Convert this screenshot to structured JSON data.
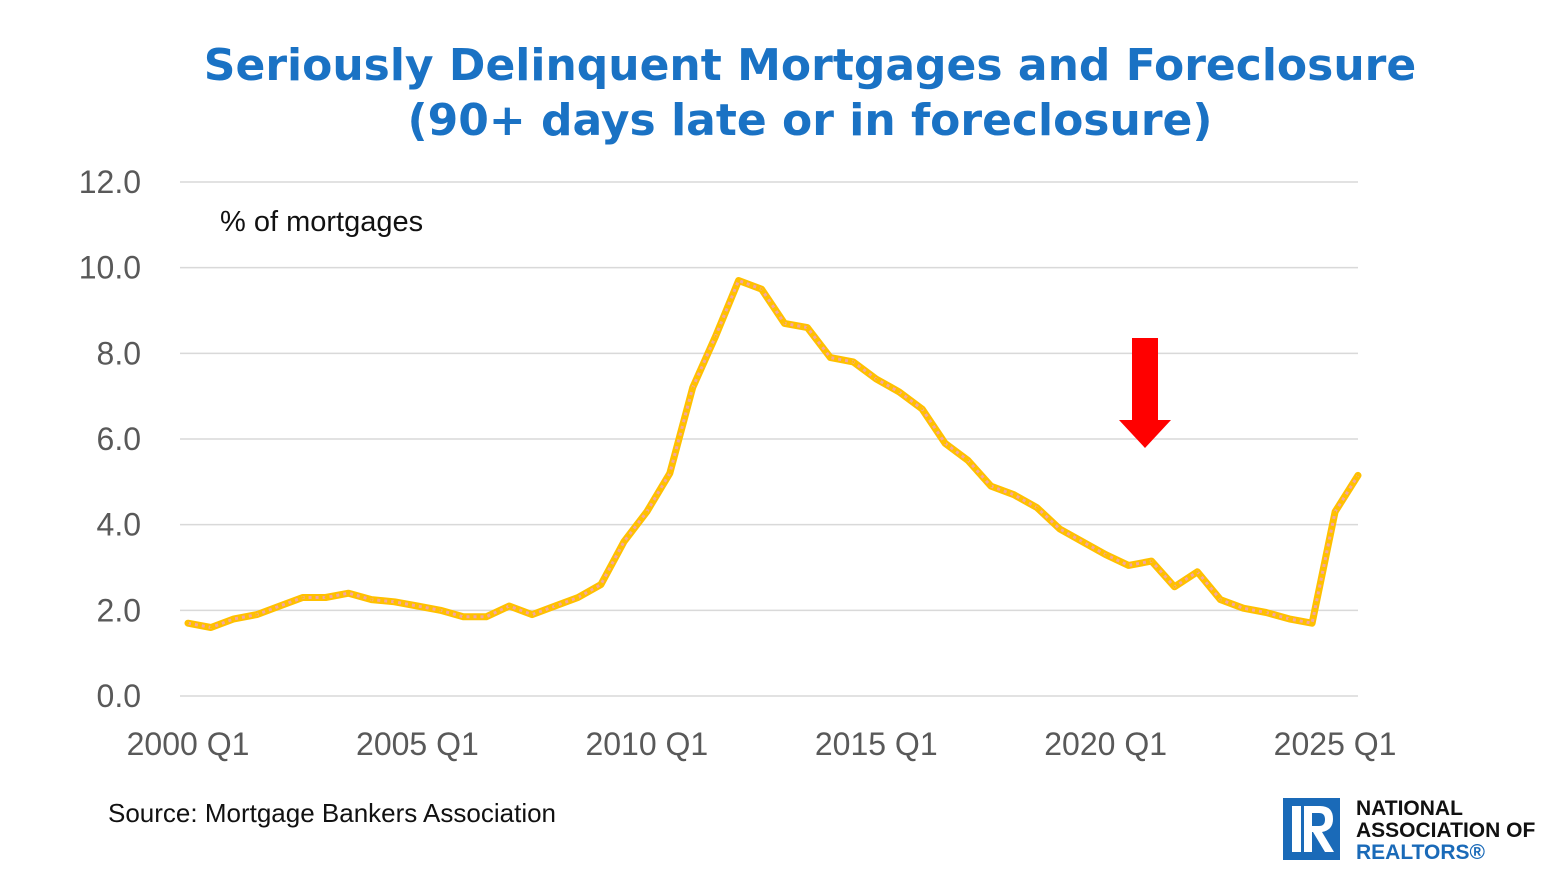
{
  "colors": {
    "title": "#1a72c4",
    "series_total": "#ffc000",
    "series_total_dash": "#f4a3a3",
    "series_foreclosure": "#e8101c",
    "series_foreclosure_dash": "#8a1528",
    "arrow": "#ff0000",
    "grid": "#d9d9d9",
    "logo_blue": "#1a6ab8"
  },
  "logo": {
    "icon": "realtor-r-logo-icon",
    "line1": "NATIONAL",
    "line2": "ASSOCIATION OF",
    "line3": "REALTORS®"
  },
  "chart_data": {
    "type": "line",
    "title_line1": "Seriously Delinquent Mortgages and Foreclosure",
    "title_line2": "(90+ days late or in foreclosure)",
    "ylabel": "% of mortgages",
    "source": "Source: Mortgage Bankers Association",
    "ylim": [
      0,
      12
    ],
    "yticks": [
      "0.0",
      "2.0",
      "4.0",
      "6.0",
      "8.0",
      "10.0",
      "12.0"
    ],
    "x_tick_labels": [
      "2000 Q1",
      "2005 Q1",
      "2010 Q1",
      "2015 Q1",
      "2020 Q1",
      "2025 Q1"
    ],
    "x_range": [
      "2000 Q1",
      "2025 Q3"
    ],
    "grid": "horizontal",
    "annotation": {
      "type": "red-down-arrow",
      "points_to": "2020 Q3"
    },
    "series": [
      {
        "values": [
          {
            "x": "2000 Q1",
            "y": 1.7
          },
          {
            "x": "2000 Q3",
            "y": 1.6
          },
          {
            "x": "2001 Q1",
            "y": 1.8
          },
          {
            "x": "2001 Q3",
            "y": 1.9
          },
          {
            "x": "2002 Q1",
            "y": 2.1
          },
          {
            "x": "2002 Q3",
            "y": 2.3
          },
          {
            "x": "2003 Q1",
            "y": 2.3
          },
          {
            "x": "2003 Q3",
            "y": 2.4
          },
          {
            "x": "2004 Q1",
            "y": 2.25
          },
          {
            "x": "2004 Q3",
            "y": 2.2
          },
          {
            "x": "2005 Q1",
            "y": 2.1
          },
          {
            "x": "2005 Q3",
            "y": 2.0
          },
          {
            "x": "2006 Q1",
            "y": 1.85
          },
          {
            "x": "2006 Q3",
            "y": 1.85
          },
          {
            "x": "2007 Q1",
            "y": 2.1
          },
          {
            "x": "2007 Q3",
            "y": 1.9
          },
          {
            "x": "2008 Q1",
            "y": 2.1
          },
          {
            "x": "2008 Q3",
            "y": 2.3
          },
          {
            "x": "2009 Q1",
            "y": 2.6
          },
          {
            "x": "2009 Q3",
            "y": 3.6
          },
          {
            "x": "2010 Q1",
            "y": 4.3
          },
          {
            "x": "2010 Q3",
            "y": 5.2
          },
          {
            "x": "2011 Q1",
            "y": 7.2
          },
          {
            "x": "2011 Q3",
            "y": 8.4
          },
          {
            "x": "2012 Q1",
            "y": 9.7
          },
          {
            "x": "2012 Q3",
            "y": 9.5
          },
          {
            "x": "2013 Q1",
            "y": 8.7
          },
          {
            "x": "2013 Q3",
            "y": 8.6
          },
          {
            "x": "2014 Q1",
            "y": 7.9
          },
          {
            "x": "2014 Q3",
            "y": 7.8
          },
          {
            "x": "2015 Q1",
            "y": 7.4
          },
          {
            "x": "2015 Q3",
            "y": 7.1
          },
          {
            "x": "2016 Q1",
            "y": 6.7
          },
          {
            "x": "2016 Q3",
            "y": 5.9
          },
          {
            "x": "2017 Q1",
            "y": 5.5
          },
          {
            "x": "2017 Q3",
            "y": 4.9
          },
          {
            "x": "2018 Q1",
            "y": 4.7
          },
          {
            "x": "2018 Q3",
            "y": 4.4
          },
          {
            "x": "2019 Q1",
            "y": 3.9
          },
          {
            "x": "2019 Q3",
            "y": 3.6
          },
          {
            "x": "2020 Q1",
            "y": 3.3
          },
          {
            "x": "2020 Q3",
            "y": 3.05
          },
          {
            "x": "2021 Q1",
            "y": 3.15
          },
          {
            "x": "2021 Q3",
            "y": 2.55
          },
          {
            "x": "2022 Q1",
            "y": 2.9
          },
          {
            "x": "2022 Q3",
            "y": 2.25
          },
          {
            "x": "2023 Q1",
            "y": 2.05
          },
          {
            "x": "2023 Q3",
            "y": 1.95
          },
          {
            "x": "2024 Q1",
            "y": 1.8
          },
          {
            "x": "2024 Q3",
            "y": 1.7
          },
          {
            "x": "2025 Q1",
            "y": 4.3
          },
          {
            "x": "2025 Q3",
            "y": 5.15
          }
        ]
      }
    ]
  }
}
